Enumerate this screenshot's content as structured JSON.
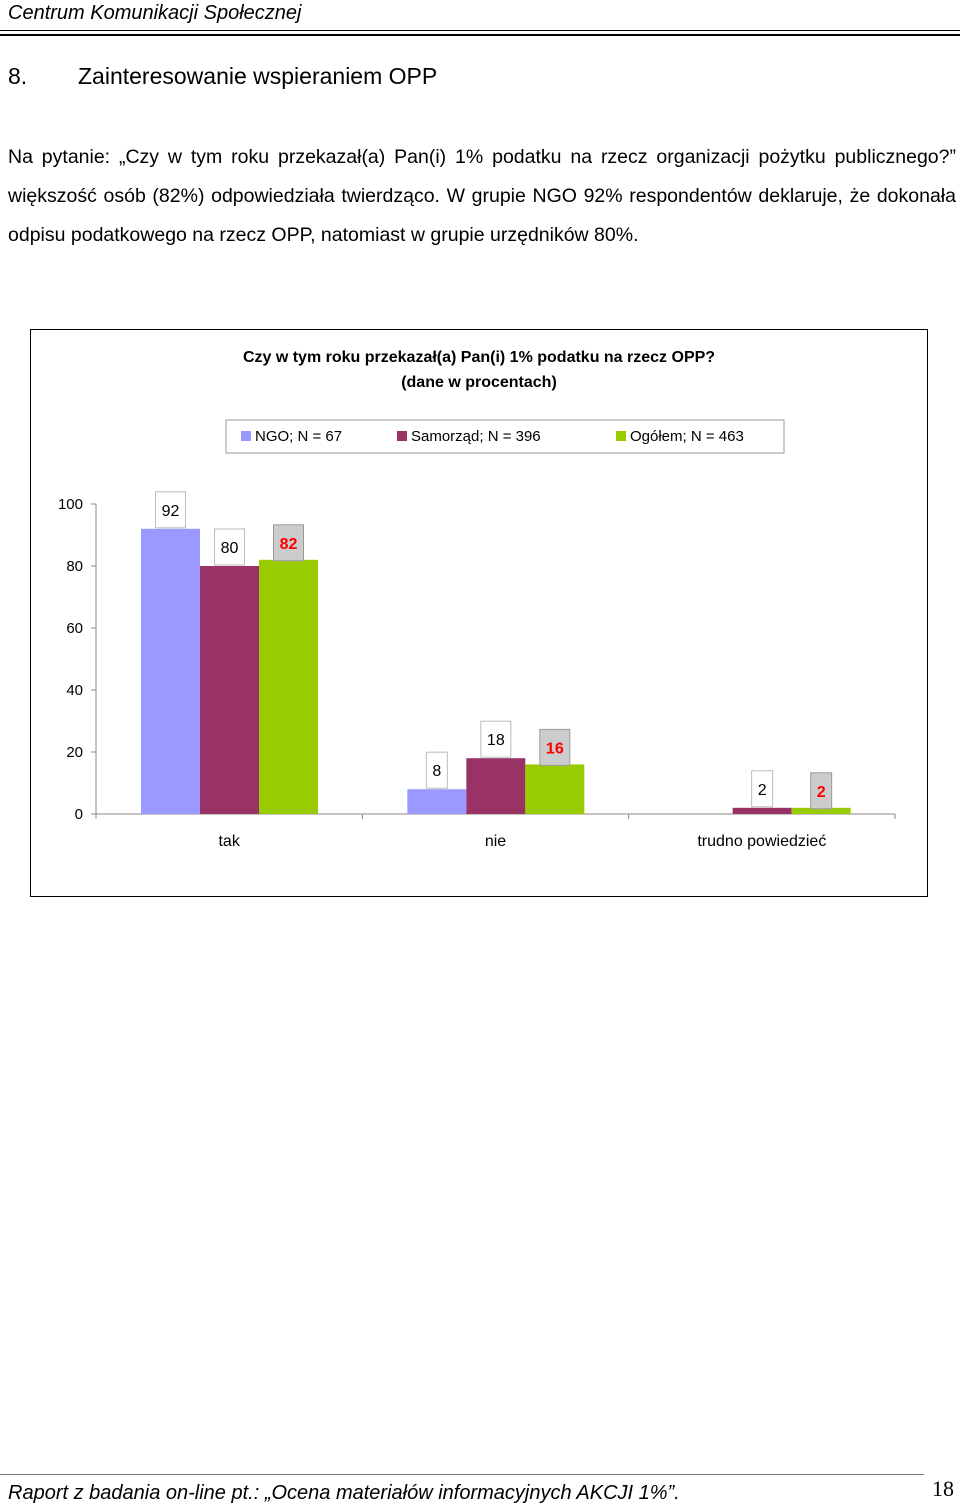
{
  "header": {
    "text": "Centrum Komunikacji Społecznej"
  },
  "section": {
    "number": "8.",
    "title": "Zainteresowanie wspieraniem OPP"
  },
  "paragraph": "Na pytanie: „Czy w tym roku przekazał(a) Pan(i) 1% podatku na rzecz organizacji pożytku publicznego?” większość osób (82%) odpowiedziała twierdząco. W grupie NGO 92% respondentów deklaruje, że dokonała odpisu podatkowego na rzecz OPP, natomiast w grupie urzędników 80%.",
  "chart_data": {
    "type": "bar",
    "title": "Czy w tym roku przekazał(a) Pan(i) 1% podatku na rzecz OPP?",
    "subtitle": "(dane w procentach)",
    "categories": [
      "tak",
      "nie",
      "trudno powiedzieć"
    ],
    "series": [
      {
        "name": "NGO; N = 67",
        "values": [
          92,
          8,
          null
        ],
        "color": "#9999ff",
        "labels": [
          "92",
          "8",
          ""
        ]
      },
      {
        "name": "Samorząd; N = 396",
        "values": [
          80,
          18,
          2
        ],
        "color": "#993366",
        "labels": [
          "80",
          "18",
          "2"
        ]
      },
      {
        "name": "Ogółem; N = 463",
        "values": [
          82,
          16,
          2
        ],
        "color": "#99cc00",
        "labels": [
          "82",
          "16",
          "2"
        ]
      }
    ],
    "highlight_label_color": "#ff0000",
    "yticks": [
      "0",
      "20",
      "40",
      "60",
      "80",
      "100"
    ],
    "ylim": [
      0,
      100
    ],
    "legend": "top",
    "grid": false
  },
  "footer": {
    "text": "Raport z badania on-line pt.: „Ocena materiałów informacyjnych AKCJI 1%”.",
    "page": "18"
  }
}
